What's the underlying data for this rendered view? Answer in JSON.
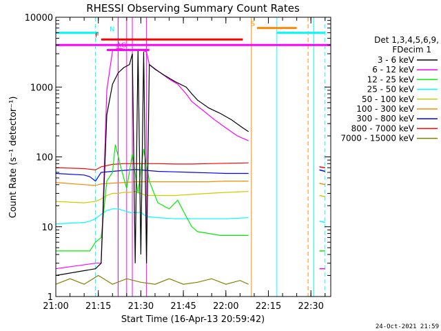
{
  "chart_data": {
    "type": "line",
    "title": "RHESSI Observing Summary Count Rates",
    "xlabel": "Start Time (16-Apr-13 20:59:42)",
    "ylabel": "Count Rate (s⁻¹ detector⁻¹)",
    "y_scale": "log",
    "xlim": [
      "21:00",
      "22:37"
    ],
    "ylim": [
      1,
      10000
    ],
    "x_ticks": [
      "21:00",
      "21:15",
      "21:30",
      "21:45",
      "22:00",
      "22:15",
      "22:30"
    ],
    "y_ticks": [
      "1",
      "10",
      "100",
      "1000",
      "10000"
    ],
    "legend": {
      "placement": "right",
      "header": [
        "Det 1,3,4,5,6,9,",
        "FDecim 1"
      ]
    },
    "series": [
      {
        "name": "3 - 6 keV",
        "color": "#000000",
        "x": [
          "21:00",
          "21:14",
          "21:16",
          "21:18",
          "21:20",
          "21:22",
          "21:24",
          "21:26",
          "21:27",
          "21:28",
          "21:29",
          "21:30",
          "21:31",
          "21:32",
          "21:33",
          "21:35",
          "21:38",
          "21:42",
          "21:46",
          "21:48",
          "21:50",
          "21:54",
          "21:58",
          "22:02",
          "22:06",
          "22:08"
        ],
        "y": [
          2,
          2.5,
          3,
          400,
          1100,
          1600,
          1900,
          2100,
          3000,
          3,
          3500,
          4,
          3200,
          3,
          2100,
          1800,
          1500,
          1200,
          1000,
          800,
          650,
          500,
          420,
          340,
          260,
          230
        ]
      },
      {
        "name": "6 - 12 keV",
        "color": "#ff00ff",
        "x": [
          "21:00",
          "21:14",
          "21:16",
          "21:18",
          "21:20",
          "21:22",
          "21:24",
          "21:26",
          "21:28",
          "21:29",
          "21:30",
          "21:31",
          "21:32",
          "21:33",
          "21:36",
          "21:40",
          "21:43",
          "21:46",
          "21:48",
          "21:52",
          "21:56",
          "22:00",
          "22:04",
          "22:08"
        ],
        "y": [
          2.5,
          3,
          3,
          900,
          3300,
          3600,
          3500,
          3300,
          3400,
          3500,
          3400,
          3300,
          3200,
          2100,
          1700,
          1300,
          1100,
          800,
          620,
          460,
          340,
          260,
          200,
          170
        ]
      },
      {
        "name": "12 - 25 keV",
        "color": "#00ee00",
        "x": [
          "21:00",
          "21:12",
          "21:14",
          "21:16",
          "21:18",
          "21:20",
          "21:21",
          "21:23",
          "21:25",
          "21:27",
          "21:29",
          "21:31",
          "21:33",
          "21:36",
          "21:40",
          "21:43",
          "21:46",
          "21:48",
          "21:50",
          "21:54",
          "21:58",
          "22:02",
          "22:06",
          "22:08"
        ],
        "y": [
          4.5,
          4.5,
          6,
          7,
          45,
          60,
          150,
          70,
          35,
          110,
          30,
          130,
          45,
          22,
          18,
          24,
          14,
          10,
          8.5,
          8,
          7.5,
          7.5,
          7.5,
          7.5
        ]
      },
      {
        "name": "25 - 50 keV",
        "color": "#00ffff",
        "x": [
          "21:00",
          "21:10",
          "21:12",
          "21:14",
          "21:16",
          "21:18",
          "21:20",
          "21:22",
          "21:24",
          "21:26",
          "21:28",
          "21:30",
          "21:32",
          "21:36",
          "21:42",
          "21:48",
          "21:54",
          "22:00",
          "22:08"
        ],
        "y": [
          11,
          11.5,
          12,
          13,
          15,
          17,
          18,
          18,
          17,
          16,
          16,
          16,
          14,
          13.5,
          13,
          13,
          13,
          13,
          13.5
        ]
      },
      {
        "name": "50 - 100 keV",
        "color": "#cccc00",
        "x": [
          "21:00",
          "21:10",
          "21:14",
          "21:16",
          "21:18",
          "21:20",
          "21:22",
          "21:24",
          "21:26",
          "21:28",
          "21:30",
          "21:32",
          "21:36",
          "21:42",
          "21:48",
          "21:54",
          "22:00",
          "22:08"
        ],
        "y": [
          23,
          22,
          23,
          25,
          28,
          30,
          30,
          31,
          31,
          32,
          30,
          28,
          28,
          28,
          29,
          30,
          31,
          32
        ]
      },
      {
        "name": "100 - 300 keV",
        "color": "#ff8800",
        "x": [
          "21:00",
          "21:10",
          "21:14",
          "21:16",
          "21:20",
          "21:24",
          "21:28",
          "21:32",
          "21:36",
          "21:42",
          "21:48",
          "21:54",
          "22:00",
          "22:08"
        ],
        "y": [
          43,
          40,
          39,
          41,
          42,
          43,
          44,
          44,
          44,
          44,
          44,
          44,
          45,
          45
        ]
      },
      {
        "name": "300 - 800 keV",
        "color": "#0000ff",
        "x": [
          "21:00",
          "21:10",
          "21:12",
          "21:14",
          "21:16",
          "21:20",
          "21:24",
          "21:28",
          "21:32",
          "21:36",
          "21:42",
          "21:48",
          "21:54",
          "22:00",
          "22:08"
        ],
        "y": [
          58,
          55,
          52,
          45,
          60,
          62,
          64,
          66,
          64,
          62,
          61,
          60,
          59,
          58,
          58
        ]
      },
      {
        "name": "800 - 7000 keV",
        "color": "#ff0000",
        "x": [
          "21:00",
          "21:10",
          "21:14",
          "21:16",
          "21:20",
          "21:24",
          "21:28",
          "21:32",
          "21:36",
          "21:42",
          "21:48",
          "21:54",
          "22:00",
          "22:08"
        ],
        "y": [
          70,
          68,
          65,
          72,
          78,
          80,
          80,
          80,
          80,
          79,
          79,
          80,
          81,
          82
        ]
      },
      {
        "name": "7000 - 15000 keV",
        "color": "#808000",
        "x": [
          "21:00",
          "21:05",
          "21:10",
          "21:15",
          "21:20",
          "21:25",
          "21:30",
          "21:35",
          "21:40",
          "21:45",
          "21:50",
          "21:55",
          "22:00",
          "22:05",
          "22:08"
        ],
        "y": [
          1.5,
          1.8,
          1.5,
          2,
          1.5,
          1.8,
          1.6,
          1.5,
          1.8,
          1.5,
          1.6,
          1.8,
          1.5,
          1.7,
          1.5
        ]
      }
    ],
    "late_segment": {
      "x": [
        "22:33",
        "22:35"
      ],
      "series_y": {
        "800 - 7000 keV": [
          72,
          70
        ],
        "300 - 800 keV": [
          65,
          62
        ],
        "100 - 300 keV": [
          42,
          40
        ],
        "50 - 100 keV": [
          28,
          27
        ],
        "25 - 50 keV": [
          12,
          11.5
        ],
        "12 - 25 keV": [
          4.5,
          4.5
        ],
        "6 - 12 keV": [
          2.5,
          2.5
        ]
      }
    },
    "flags": [
      {
        "label": "N",
        "color": "#00ffff",
        "intervals": [
          [
            "21:00",
            "21:15"
          ],
          [
            "22:18",
            "22:35"
          ]
        ],
        "y": 6000
      },
      {
        "label": "F",
        "color": "#ff0000",
        "intervals": [
          [
            "21:16",
            "22:06"
          ]
        ],
        "y": 4800
      },
      {
        "label": "",
        "color": "#ff00ff",
        "intervals": [
          [
            "21:00",
            "22:37"
          ]
        ],
        "y": 4000
      },
      {
        "label": "AG",
        "color": "#ff00ff",
        "intervals": [
          [
            "21:18",
            "21:33"
          ]
        ],
        "y": 3400
      },
      {
        "label": "S",
        "color": "#ff8800",
        "intervals": [
          [
            "22:11",
            "22:25"
          ]
        ],
        "y": 7000
      }
    ],
    "vlines": [
      {
        "x": "21:00",
        "color": "#00ffff",
        "style": "solid"
      },
      {
        "x": "21:14",
        "color": "#00ffff",
        "style": "dashed"
      },
      {
        "x": "21:22",
        "color": "#ff00ff",
        "style": "solid"
      },
      {
        "x": "21:25",
        "color": "#ff00ff",
        "style": "solid"
      },
      {
        "x": "21:27",
        "color": "#ff00ff",
        "style": "solid"
      },
      {
        "x": "21:32",
        "color": "#ff00ff",
        "style": "solid"
      },
      {
        "x": "22:09",
        "color": "#ff8800",
        "style": "solid"
      },
      {
        "x": "22:18",
        "color": "#00ffff",
        "style": "solid"
      },
      {
        "x": "22:29",
        "color": "#ff8800",
        "style": "dashed"
      },
      {
        "x": "22:31",
        "color": "#00ffff",
        "style": "solid"
      },
      {
        "x": "22:35",
        "color": "#00ffff",
        "style": "dashed"
      }
    ]
  },
  "footer": {
    "timestamp": "24-Oct-2021 21:59"
  }
}
